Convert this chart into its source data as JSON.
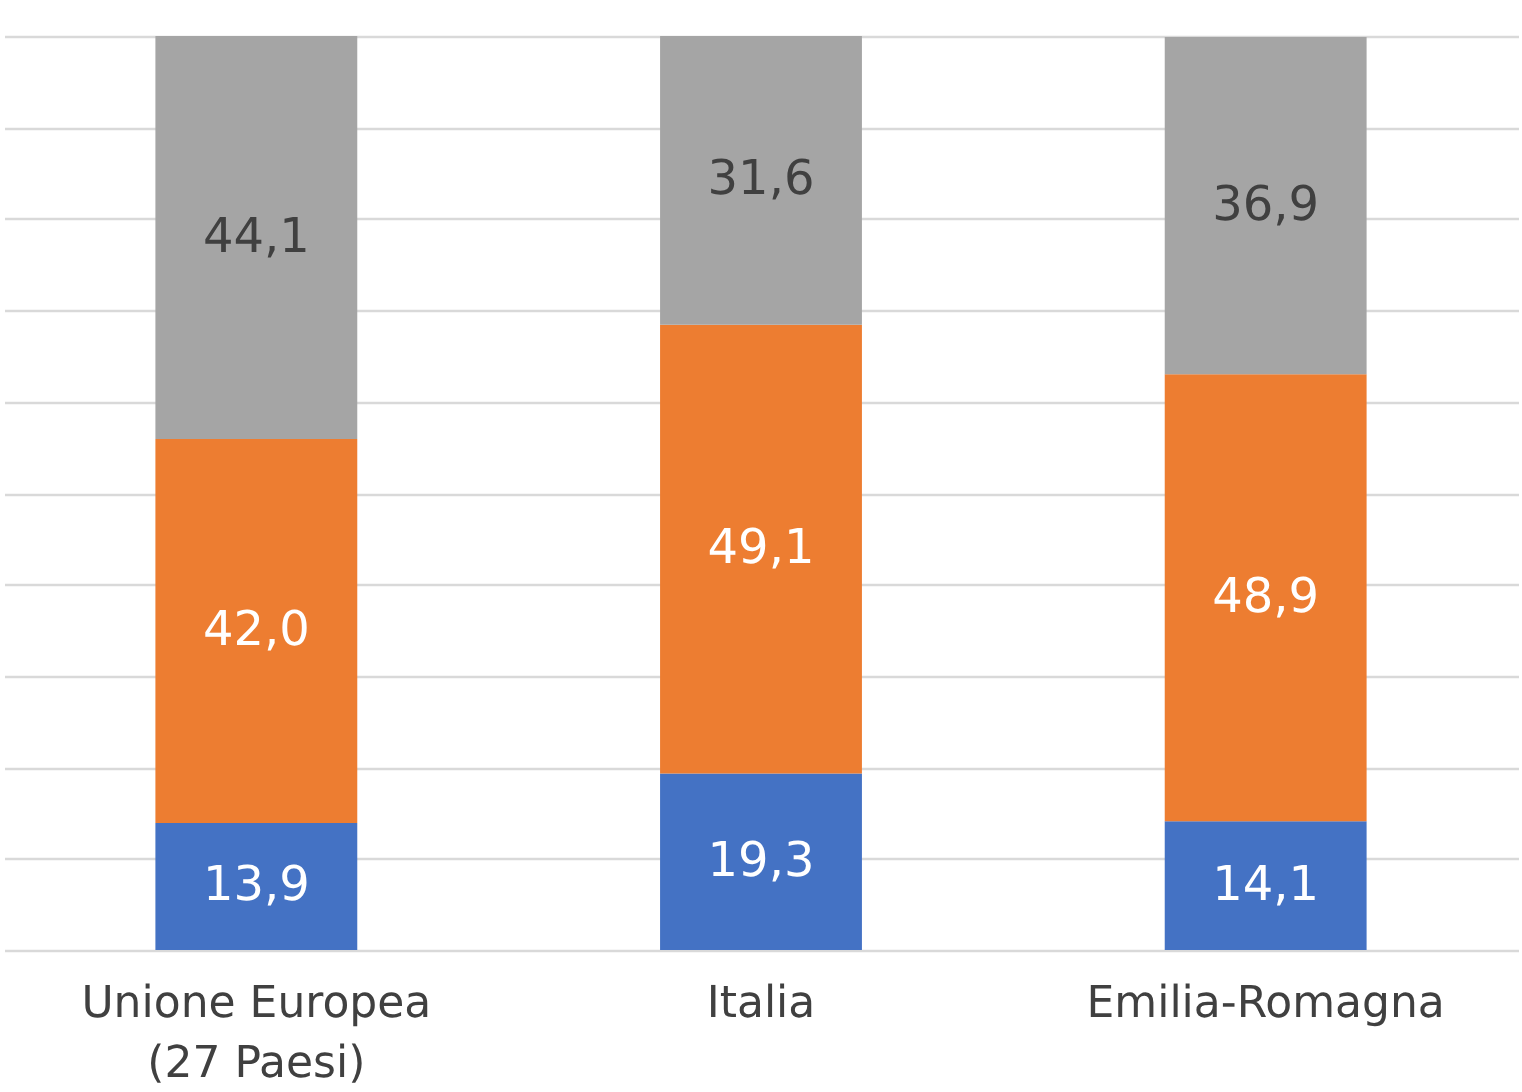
{
  "chart_data": {
    "type": "bar",
    "stacked": true,
    "categories": [
      "Unione Europea\n(27 Paesi)",
      "Italia",
      "Emilia-Romagna"
    ],
    "series": [
      {
        "color": "#4472c4",
        "values": [
          13.9,
          19.3,
          14.1
        ],
        "value_labels": [
          "13,9",
          "19,3",
          "14,1"
        ]
      },
      {
        "color": "#ed7d31",
        "values": [
          42.0,
          49.1,
          48.9
        ],
        "value_labels": [
          "42,0",
          "49,1",
          "48,9"
        ]
      },
      {
        "color": "#a5a5a5",
        "values": [
          44.1,
          31.6,
          36.9
        ],
        "value_labels": [
          "44,1",
          "31,6",
          "36,9"
        ]
      }
    ],
    "ylim": [
      0,
      100
    ],
    "yticks": [
      {
        "value": 0,
        "label": null
      },
      {
        "value": 10,
        "label": null
      },
      {
        "value": 20,
        "label": null
      },
      {
        "value": 30,
        "label": null
      },
      {
        "value": 40,
        "label": null
      },
      {
        "value": 50,
        "label": null
      },
      {
        "value": 60,
        "label": null
      },
      {
        "value": 70,
        "label": null
      },
      {
        "value": 80,
        "label": null
      },
      {
        "value": 90,
        "label": null
      },
      {
        "value": 100,
        "label": null
      }
    ],
    "grid": "y",
    "tick_labels": "x"
  }
}
